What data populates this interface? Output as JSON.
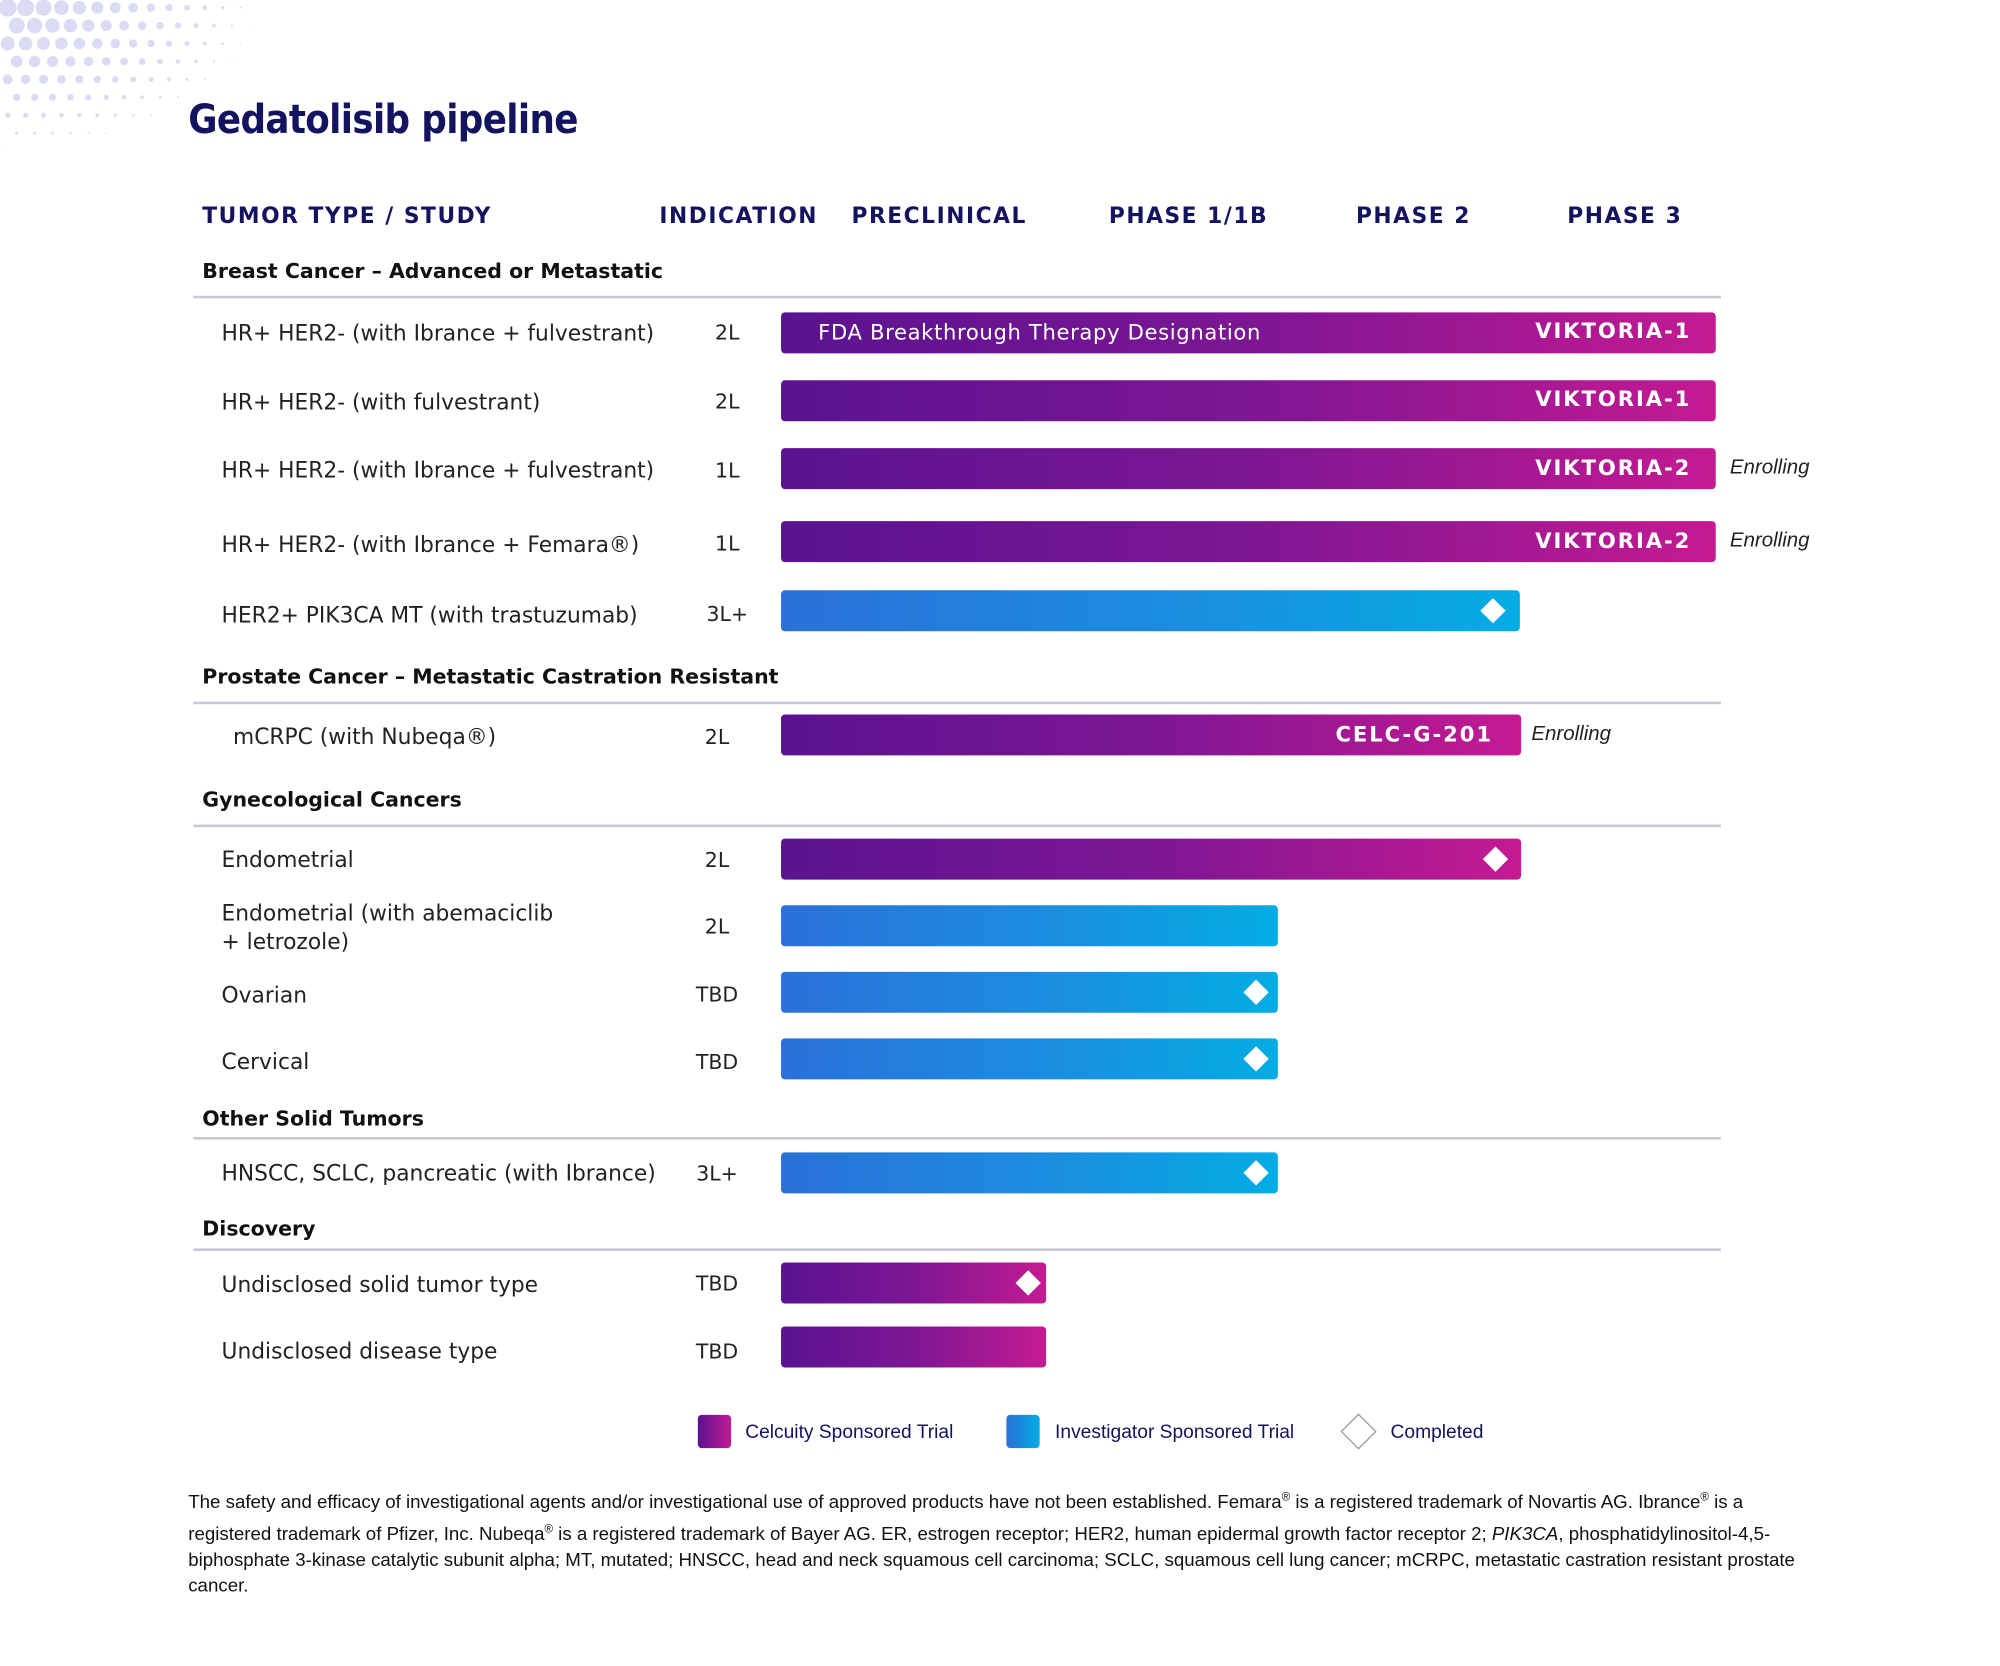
{
  "title": "Gedatolisib pipeline",
  "columns": [
    "TUMOR TYPE / STUDY",
    "INDICATION",
    "PRECLINICAL",
    "PHASE 1/1B",
    "PHASE 2",
    "PHASE 3"
  ],
  "sections": [
    "Breast Cancer – Advanced or Metastatic",
    "Prostate Cancer – Metastatic Castration Resistant",
    "Gynecological Cancers",
    "Other Solid Tumors",
    "Discovery"
  ],
  "rows": [
    {
      "label": "HR+ HER2- (with Ibrance + fulvestrant)",
      "indication": "2L",
      "sponsor": "celcuity",
      "phase_end": 4,
      "fda_text": "FDA Breakthrough Therapy Designation",
      "study": "VIKTORIA-1",
      "completed": false,
      "status": ""
    },
    {
      "label": "HR+ HER2- (with fulvestrant)",
      "indication": "2L",
      "sponsor": "celcuity",
      "phase_end": 4,
      "study": "VIKTORIA-1",
      "completed": false,
      "status": ""
    },
    {
      "label": "HR+ HER2- (with Ibrance + fulvestrant)",
      "indication": "1L",
      "sponsor": "celcuity",
      "phase_end": 4,
      "study": "VIKTORIA-2",
      "completed": false,
      "status": "Enrolling"
    },
    {
      "label": "HR+ HER2- (with Ibrance + Femara®)",
      "indication": "1L",
      "sponsor": "celcuity",
      "phase_end": 4,
      "study": "VIKTORIA-2",
      "completed": false,
      "status": "Enrolling"
    },
    {
      "label": "HER2+ PIK3CA MT (with trastuzumab)",
      "indication": "3L+",
      "sponsor": "investigator",
      "phase_end": 3,
      "study": "",
      "completed": true,
      "status": ""
    },
    {
      "label": "mCRPC (with Nubeqa®)",
      "indication": "2L",
      "sponsor": "celcuity",
      "phase_end": 3,
      "study": "CELC-G-201",
      "completed": false,
      "status": "Enrolling"
    },
    {
      "label": "Endometrial",
      "indication": "2L",
      "sponsor": "celcuity",
      "phase_end": 3,
      "study": "",
      "completed": true,
      "status": ""
    },
    {
      "label_line1": "Endometrial (with abemaciclib",
      "label_line2": "+ letrozole)",
      "indication": "2L",
      "sponsor": "investigator",
      "phase_end": 2,
      "study": "",
      "completed": false,
      "status": ""
    },
    {
      "label": "Ovarian",
      "indication": "TBD",
      "sponsor": "investigator",
      "phase_end": 2,
      "study": "",
      "completed": true,
      "status": ""
    },
    {
      "label": "Cervical",
      "indication": "TBD",
      "sponsor": "investigator",
      "phase_end": 2,
      "study": "",
      "completed": true,
      "status": ""
    },
    {
      "label": "HNSCC, SCLC, pancreatic (with Ibrance)",
      "indication": "3L+",
      "sponsor": "investigator",
      "phase_end": 2,
      "study": "",
      "completed": true,
      "status": ""
    },
    {
      "label": "Undisclosed solid tumor type",
      "indication": "TBD",
      "sponsor": "celcuity",
      "phase_end": 1,
      "study": "",
      "completed": true,
      "status": ""
    },
    {
      "label": "Undisclosed disease type",
      "indication": "TBD",
      "sponsor": "celcuity",
      "phase_end": 1,
      "study": "",
      "completed": false,
      "status": ""
    }
  ],
  "legend": {
    "celcuity": "Celcuity Sponsored Trial",
    "investigator": "Investigator Sponsored Trial",
    "completed": "Completed"
  },
  "footnote": {
    "p1": "The safety and efficacy of investigational agents and/or investigational use of approved products have not been established. Femara",
    "reg1": "®",
    "p2": " is a registered trademark of Novartis AG. Ibrance",
    "reg2": "®",
    "p3": " is a registered trademark of Pfizer, Inc. Nubeqa",
    "reg3": "®",
    "p4": " is a registered trademark of Bayer AG. ER, estrogen receptor; HER2, human epidermal growth factor receptor 2; ",
    "p5": "PIK3CA",
    "p6": ", phosphatidylinositol-4,5-biphosphate 3-kinase catalytic subunit alpha; MT, mutated; HNSCC, head and neck squamous cell carcinoma; SCLC, squamous cell lung cancer; mCRPC, metastatic castration resistant prostate cancer."
  },
  "colors": {
    "title": "#13135f",
    "celcuity_start": "#5a1390",
    "celcuity_end": "#c41a92",
    "investigator_start": "#2a70d8",
    "investigator_end": "#03ace4",
    "rule": "#c5c8d4"
  }
}
